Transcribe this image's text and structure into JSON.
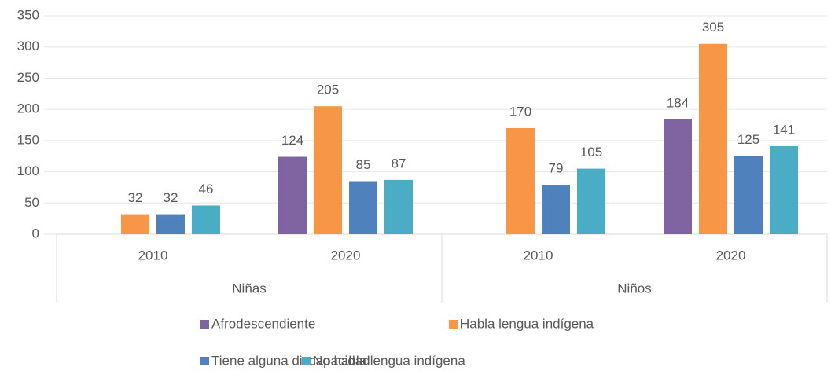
{
  "chart_data": {
    "type": "bar",
    "categories": [
      "2010",
      "2020",
      "2010",
      "2020"
    ],
    "group_labels": [
      "Niñas",
      "Niños"
    ],
    "series": [
      {
        "name": "Afrodescendiente",
        "color": "#8064a2",
        "values": [
          null,
          124,
          null,
          184
        ]
      },
      {
        "name": "Habla lengua indígena",
        "color": "#f79646",
        "values": [
          32,
          205,
          170,
          305
        ]
      },
      {
        "name": "Tiene alguna discapacidad",
        "color": "#4f81bd",
        "values": [
          32,
          85,
          79,
          125
        ]
      },
      {
        "name": "No habla lengua indígena",
        "color": "#4bacc6",
        "values": [
          46,
          87,
          105,
          141
        ]
      }
    ],
    "ylim": [
      0,
      350
    ],
    "yticks": [
      0,
      50,
      100,
      150,
      200,
      250,
      300,
      350
    ],
    "grid": true,
    "legend": "bottom"
  }
}
